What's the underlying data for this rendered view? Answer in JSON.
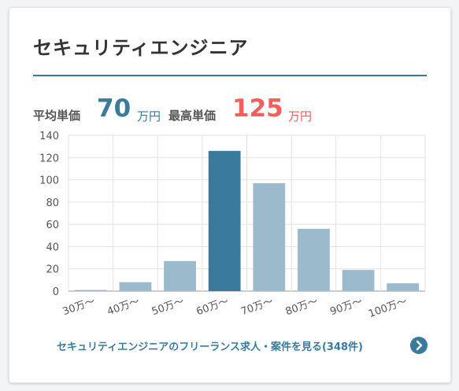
{
  "title": "セキュリティエンジニア",
  "stats": {
    "avg_label": "平均単価",
    "avg_value": "70",
    "avg_unit": "万円",
    "max_label": "最高単価",
    "max_value": "125",
    "max_unit": "万円"
  },
  "footer": {
    "link_text": "セキュリティエンジニアのフリーランス求人・案件を見る(348件)",
    "arrow_icon": "chevron-right-icon"
  },
  "colors": {
    "accent": "#3a7a9d",
    "highlight_bar": "#3a7a9d",
    "normal_bar": "#9bbacb",
    "max_value": "#f0605d"
  },
  "chart_data": {
    "type": "bar",
    "categories": [
      "30万〜",
      "40万〜",
      "50万〜",
      "60万〜",
      "70万〜",
      "80万〜",
      "90万〜",
      "100万〜"
    ],
    "values": [
      1,
      8,
      27,
      126,
      97,
      56,
      19,
      7
    ],
    "highlight_index": 3,
    "ylim": [
      0,
      140
    ],
    "yticks": [
      0,
      20,
      40,
      60,
      80,
      100,
      120,
      140
    ],
    "grid": true,
    "title": "",
    "xlabel": "",
    "ylabel": ""
  }
}
